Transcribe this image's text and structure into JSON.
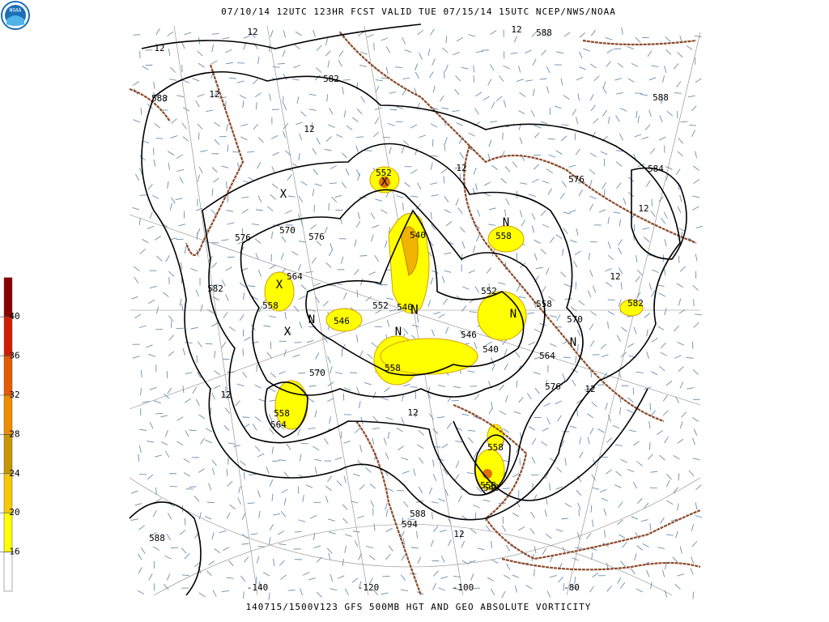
{
  "header": "07/10/14 12UTC   123HR  FCST VALID TUE 07/15/14 15UTC  NCEP/NWS/NOAA",
  "footer": "140715/1500V123 GFS 500MB HGT AND GEO ABSOLUTE VORTICITY",
  "logo": "NOAA",
  "colorbar": {
    "levels": [
      16,
      20,
      24,
      28,
      32,
      36,
      40
    ],
    "colors": [
      "#ffffff",
      "#ffff00",
      "#f5c800",
      "#c89600",
      "#f08c00",
      "#e65a00",
      "#d21e00",
      "#8c0000"
    ]
  },
  "longitude_labels": [
    -140,
    -120,
    -100,
    -80
  ],
  "height_labels": [
    588,
    582,
    588,
    588,
    584,
    576,
    552,
    576,
    570,
    576,
    564,
    558,
    582,
    540,
    552,
    558,
    546,
    540,
    552,
    558,
    546,
    540,
    564,
    570,
    558,
    582,
    570,
    576,
    558,
    564,
    558,
    588,
    594,
    558,
    540,
    588
  ],
  "vorticity_labels": [
    12,
    12,
    12,
    12,
    12,
    12,
    12,
    12,
    12,
    12,
    12,
    12
  ]
}
